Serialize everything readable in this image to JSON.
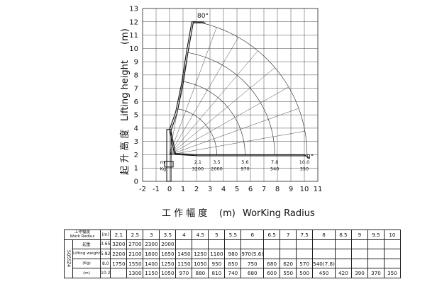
{
  "chart_data": {
    "type": "line",
    "title": "",
    "xlabel_cn": "工 作 幅 度",
    "xlabel_unit": "(m)",
    "xlabel_en": "WorKing Radius",
    "ylabel_cn": "起 升 高 度",
    "ylabel_en": "Lifting height",
    "ylabel_unit": "(m)",
    "xlim": [
      -2,
      11
    ],
    "ylim": [
      0,
      13
    ],
    "xticks": [
      "-2",
      "-1",
      "0",
      "1",
      "2",
      "3",
      "4",
      "5",
      "6",
      "7",
      "8",
      "9",
      "10",
      "11"
    ],
    "yticks": [
      "0",
      "1",
      "2",
      "3",
      "4",
      "5",
      "6",
      "7",
      "8",
      "9",
      "10",
      "11",
      "12",
      "13"
    ],
    "grid": true,
    "angle_labels": [
      "80°",
      "0°"
    ],
    "boom_lines": [
      {
        "points": [
          [
            0,
            3.9
          ],
          [
            0.45,
            5.2
          ],
          [
            0.9,
            7.4
          ],
          [
            1.25,
            9.7
          ],
          [
            1.65,
            12.0
          ],
          [
            2.55,
            12.0
          ]
        ]
      },
      {
        "points": [
          [
            0,
            3.9
          ],
          [
            0.35,
            2.1
          ],
          [
            2.0,
            2.0
          ],
          [
            3.5,
            2.0
          ],
          [
            5.6,
            2.0
          ],
          [
            7.8,
            2.0
          ],
          [
            10.0,
            2.0
          ],
          [
            10.3,
            1.8
          ]
        ]
      }
    ],
    "arc_radii": [
      3.5,
      5.6,
      7.8,
      10.2
    ],
    "arc_center": [
      0,
      2.0
    ],
    "inset_table": {
      "header": [
        "m",
        "Kg"
      ],
      "points": [
        {
          "x": 2.1,
          "m": "2.1",
          "kg": "3200"
        },
        {
          "x": 3.5,
          "m": "3.5",
          "kg": "2000"
        },
        {
          "x": 5.6,
          "m": "5.6",
          "kg": "970"
        },
        {
          "x": 7.8,
          "m": "7.8",
          "kg": "540"
        },
        {
          "x": 10.0,
          "m": "10.0",
          "kg": "350"
        }
      ]
    }
  },
  "table": {
    "header_top": "工作幅度",
    "header_bottom": "Work Radius",
    "radius_unit": "(m)",
    "radius_cols": [
      "2.1",
      "2.5",
      "3",
      "3.5",
      "4",
      "4.5",
      "5",
      "5.5",
      "6",
      "6.5",
      "7",
      "7.5",
      "8",
      "8.5",
      "9",
      "9.5",
      "10"
    ],
    "model": "SQ5SZ4",
    "row_units": [
      "3.65",
      "5.82",
      "8.0",
      "10.2"
    ],
    "row_labels": [
      "起重",
      "Lifting weight",
      "(Kg)",
      ""
    ],
    "rows": [
      [
        "3200",
        "2700",
        "2300",
        "2000",
        "",
        "",
        "",
        "",
        "",
        "",
        "",
        "",
        "",
        "",
        "",
        "",
        ""
      ],
      [
        "2200",
        "2100",
        "1800",
        "1650",
        "1450",
        "1250",
        "1100",
        "980",
        "970(5.6)",
        "",
        "",
        "",
        "",
        "",
        "",
        "",
        ""
      ],
      [
        "1750",
        "1550",
        "1400",
        "1250",
        "1150",
        "1050",
        "950",
        "850",
        "750",
        "680",
        "620",
        "570",
        "540(7.8)",
        "",
        "",
        "",
        ""
      ],
      [
        "",
        "1300",
        "1150",
        "1050",
        "970",
        "880",
        "810",
        "740",
        "680",
        "600",
        "550",
        "500",
        "450",
        "420",
        "390",
        "370",
        "350"
      ]
    ],
    "unit_label": "(m)"
  }
}
